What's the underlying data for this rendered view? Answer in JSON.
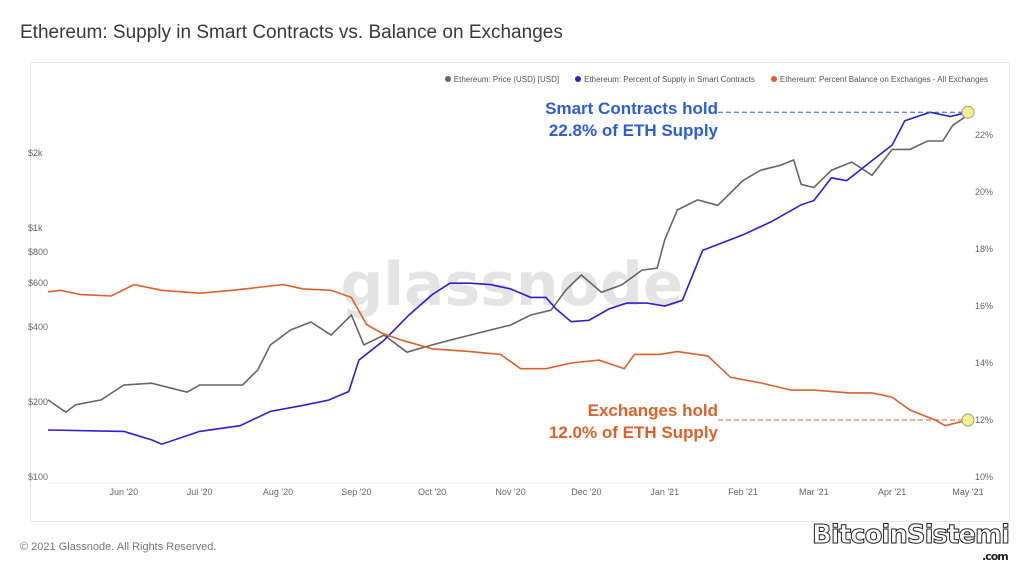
{
  "title": "Ethereum: Supply in Smart Contracts vs. Balance on Exchanges",
  "footer": "© 2021 Glassnode. All Rights Reserved.",
  "watermark": "glassnode",
  "logo": {
    "text": "BitcoinSistemi",
    "suffix": ".com"
  },
  "chart_data": {
    "type": "line",
    "xlim": [
      "2020-05-02",
      "2021-05-03"
    ],
    "x_ticks": [
      [
        "2020-06-01",
        "Jun '20"
      ],
      [
        "2020-07-01",
        "Jul '20"
      ],
      [
        "2020-08-01",
        "Aug '20"
      ],
      [
        "2020-09-01",
        "Sep '20"
      ],
      [
        "2020-10-01",
        "Oct '20"
      ],
      [
        "2020-11-01",
        "Nov '20"
      ],
      [
        "2020-12-01",
        "Dec '20"
      ],
      [
        "2021-01-01",
        "Jan '21"
      ],
      [
        "2021-02-01",
        "Feb '21"
      ],
      [
        "2021-03-01",
        "Mar '21"
      ],
      [
        "2021-04-01",
        "Apr '21"
      ],
      [
        "2021-05-01",
        "May '21"
      ]
    ],
    "y_left": {
      "scale": "log",
      "ylim": [
        100,
        3000
      ],
      "ticks": [
        [
          100,
          "$100"
        ],
        [
          200,
          "$200"
        ],
        [
          400,
          "$400"
        ],
        [
          600,
          "$600"
        ],
        [
          800,
          "$800"
        ],
        [
          1000,
          "$1k"
        ],
        [
          2000,
          "$2k"
        ]
      ]
    },
    "y_right": {
      "scale": "linear",
      "ylim": [
        10,
        23.7
      ],
      "ticks": [
        [
          10,
          "10%"
        ],
        [
          12,
          "12%"
        ],
        [
          14,
          "14%"
        ],
        [
          16,
          "16%"
        ],
        [
          18,
          "18%"
        ],
        [
          20,
          "20%"
        ],
        [
          22,
          "22%"
        ]
      ]
    },
    "grid": false,
    "legend_position": "top-right",
    "series": [
      {
        "name": "Ethereum: Price (USD) [USD]",
        "axis": "left",
        "color": "#666666",
        "points": [
          [
            "2020-05-02",
            204
          ],
          [
            "2020-05-09",
            182
          ],
          [
            "2020-05-13",
            195
          ],
          [
            "2020-05-23",
            204
          ],
          [
            "2020-06-01",
            234
          ],
          [
            "2020-06-12",
            238
          ],
          [
            "2020-06-26",
            219
          ],
          [
            "2020-07-01",
            234
          ],
          [
            "2020-07-18",
            234
          ],
          [
            "2020-07-24",
            269
          ],
          [
            "2020-07-29",
            339
          ],
          [
            "2020-08-06",
            389
          ],
          [
            "2020-08-14",
            419
          ],
          [
            "2020-08-22",
            371
          ],
          [
            "2020-08-30",
            447
          ],
          [
            "2020-09-04",
            339
          ],
          [
            "2020-09-12",
            371
          ],
          [
            "2020-09-21",
            317
          ],
          [
            "2020-10-01",
            339
          ],
          [
            "2020-10-08",
            354
          ],
          [
            "2020-10-16",
            371
          ],
          [
            "2020-10-24",
            389
          ],
          [
            "2020-11-01",
            407
          ],
          [
            "2020-11-09",
            447
          ],
          [
            "2020-11-17",
            467
          ],
          [
            "2020-11-23",
            564
          ],
          [
            "2020-11-29",
            647
          ],
          [
            "2020-12-07",
            551
          ],
          [
            "2020-12-15",
            590
          ],
          [
            "2020-12-23",
            677
          ],
          [
            "2020-12-29",
            689
          ],
          [
            "2021-01-01",
            895
          ],
          [
            "2021-01-06",
            1180
          ],
          [
            "2021-01-14",
            1295
          ],
          [
            "2021-01-22",
            1232
          ],
          [
            "2021-02-01",
            1551
          ],
          [
            "2021-02-08",
            1703
          ],
          [
            "2021-02-16",
            1786
          ],
          [
            "2021-02-21",
            1874
          ],
          [
            "2021-02-24",
            1494
          ],
          [
            "2021-03-01",
            1452
          ],
          [
            "2021-03-08",
            1703
          ],
          [
            "2021-03-16",
            1838
          ],
          [
            "2021-03-24",
            1626
          ],
          [
            "2021-04-01",
            2064
          ],
          [
            "2021-04-08",
            2064
          ],
          [
            "2021-04-15",
            2232
          ],
          [
            "2021-04-21",
            2232
          ],
          [
            "2021-04-25",
            2583
          ],
          [
            "2021-05-01",
            2836
          ]
        ]
      },
      {
        "name": "Ethereum: Percent of Supply in Smart Contracts",
        "axis": "right",
        "color": "#2b1fd6",
        "points": [
          [
            "2020-05-02",
            11.65
          ],
          [
            "2020-06-01",
            11.6
          ],
          [
            "2020-06-12",
            11.3
          ],
          [
            "2020-06-16",
            11.15
          ],
          [
            "2020-07-01",
            11.6
          ],
          [
            "2020-07-17",
            11.8
          ],
          [
            "2020-07-29",
            12.3
          ],
          [
            "2020-08-10",
            12.5
          ],
          [
            "2020-08-21",
            12.7
          ],
          [
            "2020-08-29",
            13.0
          ],
          [
            "2020-09-02",
            14.1
          ],
          [
            "2020-09-12",
            14.8
          ],
          [
            "2020-09-22",
            15.7
          ],
          [
            "2020-10-01",
            16.4
          ],
          [
            "2020-10-08",
            16.8
          ],
          [
            "2020-10-16",
            16.8
          ],
          [
            "2020-10-24",
            16.75
          ],
          [
            "2020-11-01",
            16.6
          ],
          [
            "2020-11-09",
            16.3
          ],
          [
            "2020-11-15",
            16.3
          ],
          [
            "2020-11-19",
            15.9
          ],
          [
            "2020-11-25",
            15.45
          ],
          [
            "2020-12-02",
            15.5
          ],
          [
            "2020-12-10",
            15.9
          ],
          [
            "2020-12-17",
            16.1
          ],
          [
            "2020-12-25",
            16.1
          ],
          [
            "2021-01-01",
            16.0
          ],
          [
            "2021-01-08",
            16.2
          ],
          [
            "2021-01-16",
            17.95
          ],
          [
            "2021-02-01",
            18.5
          ],
          [
            "2021-02-12",
            18.95
          ],
          [
            "2021-02-24",
            19.55
          ],
          [
            "2021-03-01",
            19.7
          ],
          [
            "2021-03-08",
            20.5
          ],
          [
            "2021-03-14",
            20.4
          ],
          [
            "2021-03-24",
            21.1
          ],
          [
            "2021-04-01",
            21.65
          ],
          [
            "2021-04-06",
            22.5
          ],
          [
            "2021-04-16",
            22.8
          ],
          [
            "2021-04-24",
            22.65
          ],
          [
            "2021-05-01",
            22.8
          ]
        ]
      },
      {
        "name": "Ethereum: Percent Balance on Exchanges - All Exchanges",
        "axis": "right",
        "color": "#e0602a",
        "points": [
          [
            "2020-05-02",
            16.5
          ],
          [
            "2020-05-07",
            16.55
          ],
          [
            "2020-05-15",
            16.4
          ],
          [
            "2020-05-27",
            16.35
          ],
          [
            "2020-06-05",
            16.75
          ],
          [
            "2020-06-16",
            16.55
          ],
          [
            "2020-07-01",
            16.45
          ],
          [
            "2020-07-14",
            16.55
          ],
          [
            "2020-08-03",
            16.75
          ],
          [
            "2020-08-11",
            16.6
          ],
          [
            "2020-08-22",
            16.55
          ],
          [
            "2020-08-30",
            16.3
          ],
          [
            "2020-09-05",
            15.35
          ],
          [
            "2020-09-11",
            15.05
          ],
          [
            "2020-09-19",
            14.8
          ],
          [
            "2020-10-01",
            14.5
          ],
          [
            "2020-10-16",
            14.4
          ],
          [
            "2020-10-28",
            14.3
          ],
          [
            "2020-11-05",
            13.8
          ],
          [
            "2020-11-15",
            13.8
          ],
          [
            "2020-11-25",
            14.0
          ],
          [
            "2020-12-06",
            14.1
          ],
          [
            "2020-12-16",
            13.8
          ],
          [
            "2020-12-20",
            14.3
          ],
          [
            "2020-12-30",
            14.3
          ],
          [
            "2021-01-06",
            14.4
          ],
          [
            "2021-01-18",
            14.25
          ],
          [
            "2021-01-27",
            13.5
          ],
          [
            "2021-02-08",
            13.3
          ],
          [
            "2021-02-20",
            13.05
          ],
          [
            "2021-03-01",
            13.05
          ],
          [
            "2021-03-15",
            12.95
          ],
          [
            "2021-03-24",
            12.95
          ],
          [
            "2021-04-01",
            12.8
          ],
          [
            "2021-04-08",
            12.35
          ],
          [
            "2021-04-18",
            12.0
          ],
          [
            "2021-04-22",
            11.8
          ],
          [
            "2021-05-01",
            12.0
          ]
        ]
      }
    ],
    "annotations": [
      {
        "lines": [
          "Smart Contracts hold",
          "22.8% of ETH Supply"
        ],
        "color": "#2b5de0",
        "value": 22.8,
        "date": "2021-05-01"
      },
      {
        "lines": [
          "Exchanges hold",
          "12.0% of ETH Supply"
        ],
        "color": "#e0602a",
        "value": 12.0,
        "date": "2021-05-01"
      }
    ]
  }
}
